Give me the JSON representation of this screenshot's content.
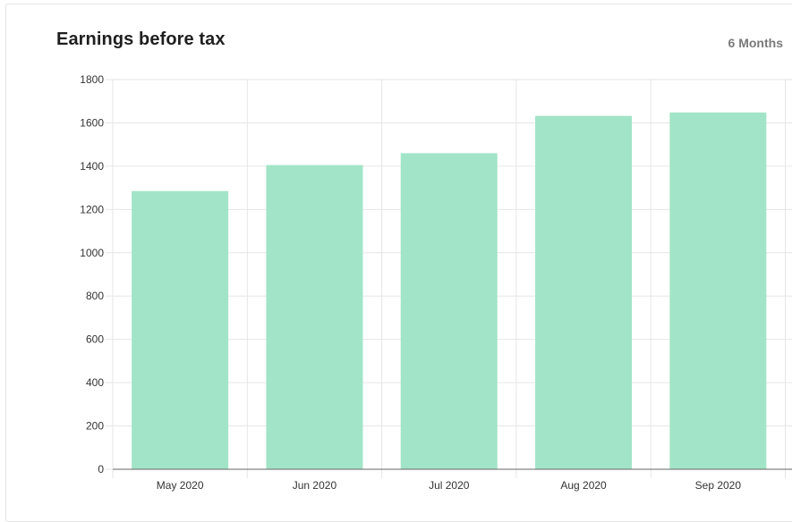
{
  "header": {
    "title": "Earnings before tax",
    "period_label": "6 Months"
  },
  "colors": {
    "bar": "#a2e4c7",
    "grid": "#e6e6e6",
    "axis": "#666666"
  },
  "chart_data": {
    "type": "bar",
    "title": "Earnings before tax",
    "categories": [
      "May 2020",
      "Jun 2020",
      "Jul 2020",
      "Aug 2020",
      "Sep 2020"
    ],
    "values": [
      1285,
      1405,
      1460,
      1632,
      1648
    ],
    "xlabel": "",
    "ylabel": "",
    "ylim": [
      0,
      1800
    ],
    "yticks": [
      0,
      200,
      400,
      600,
      800,
      1000,
      1200,
      1400,
      1600,
      1800
    ],
    "grid": true,
    "legend": "none"
  }
}
